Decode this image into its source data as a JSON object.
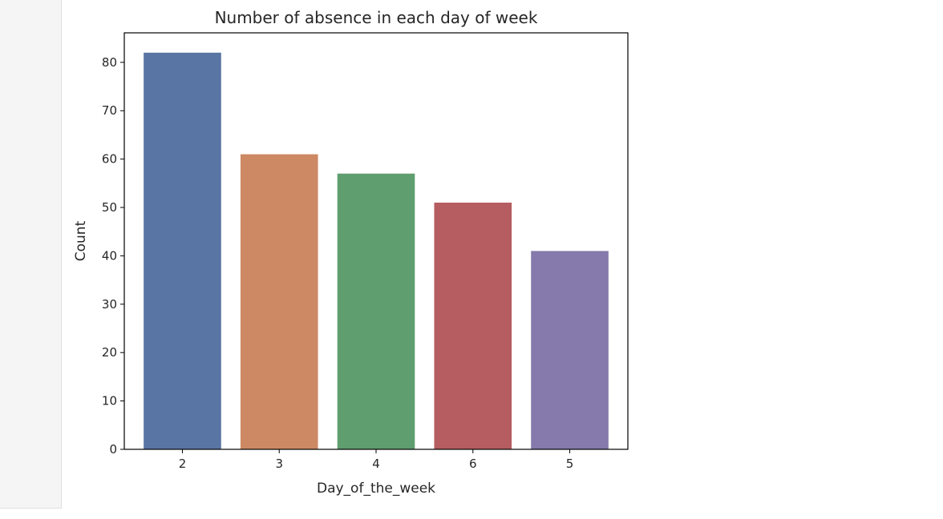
{
  "chart_data": {
    "type": "bar",
    "title": "Number of absence in each day of week",
    "xlabel": "Day_of_the_week",
    "ylabel": "Count",
    "categories": [
      "2",
      "3",
      "4",
      "6",
      "5"
    ],
    "values": [
      82,
      61,
      57,
      51,
      41
    ],
    "colors": [
      "#5975a4",
      "#cc8963",
      "#5f9e6e",
      "#b55d60",
      "#857aab"
    ],
    "ylim": [
      0,
      86.1
    ],
    "yticks": [
      0,
      10,
      20,
      30,
      40,
      50,
      60,
      70,
      80
    ],
    "grid": false,
    "legend": "none"
  }
}
